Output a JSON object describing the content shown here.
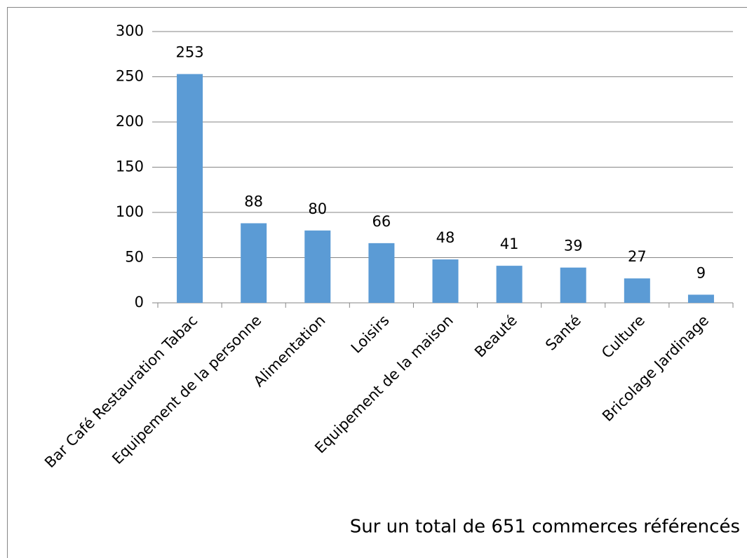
{
  "chart_data": {
    "type": "bar",
    "categories": [
      "Bar Café Restauration Tabac",
      "Equipement de la personne",
      "Alimentation",
      "Loisirs",
      "Equipement de la maison",
      "Beauté",
      "Santé",
      "Culture",
      "Bricolage Jardinage"
    ],
    "values": [
      253,
      88,
      80,
      66,
      48,
      41,
      39,
      27,
      9
    ],
    "color": "#5b9bd5",
    "ylim": [
      0,
      300
    ],
    "yticks": [
      0,
      50,
      100,
      150,
      200,
      250,
      300
    ],
    "grid": true,
    "annotation": "Sur un total de 651 commerces référencés"
  }
}
